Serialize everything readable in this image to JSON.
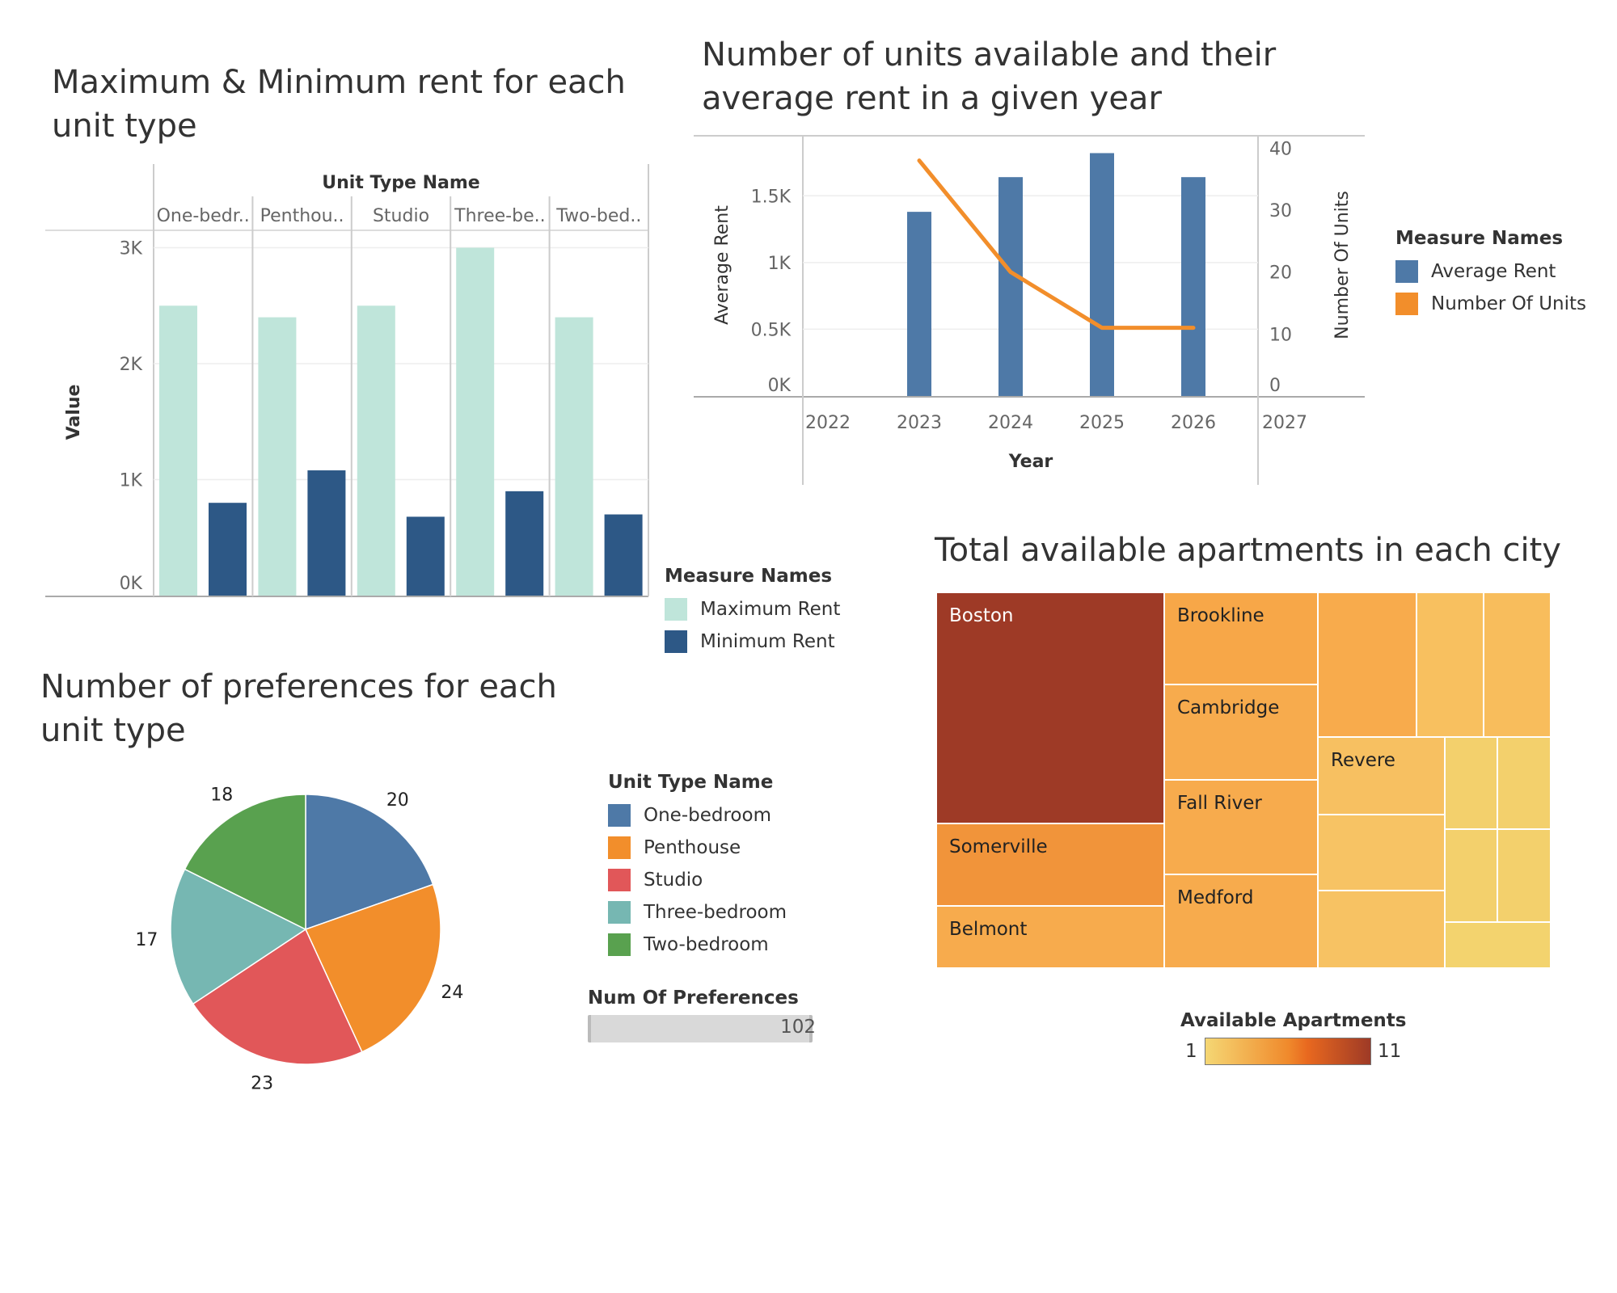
{
  "bar_chart": {
    "title_line1": "Maximum & Minimum rent for each",
    "title_line2": "unit type",
    "header": "Unit Type Name",
    "legend_title": "Measure Names",
    "colors": {
      "max": "#bfe5da",
      "min": "#2d5886"
    }
  },
  "combo_chart": {
    "title_line1": "Number of units available and their",
    "title_line2": "average rent in a given year",
    "legend_title": "Measure Names",
    "colors": {
      "bar": "#4e79a7",
      "line": "#f28e2b"
    }
  },
  "pie_chart": {
    "title_line1": "Number of preferences for each",
    "title_line2": "unit type",
    "legend_title": "Unit Type Name",
    "size_legend_title": "Num Of Preferences",
    "size_legend_value": "102"
  },
  "treemap": {
    "title": "Total available apartments in each city",
    "legend_title": "Available Apartments",
    "legend_min": "1",
    "legend_max": "11"
  },
  "chart_data": [
    {
      "type": "bar",
      "categories": [
        "One-bedr..",
        "Penthou..",
        "Studio",
        "Three-be..",
        "Two-bed.."
      ],
      "series": [
        {
          "name": "Maximum Rent",
          "values": [
            2500,
            2400,
            2500,
            3000,
            2400
          ]
        },
        {
          "name": "Minimum Rent",
          "values": [
            800,
            1080,
            680,
            900,
            700
          ]
        }
      ],
      "xlabel": "Unit Type Name",
      "ylabel": "Value",
      "ylim": [
        0,
        3150
      ],
      "yticks": [
        0,
        1000,
        2000,
        3000
      ],
      "ytick_labels": [
        "0K",
        "1K",
        "2K",
        "3K"
      ],
      "legend_placement": "bottom-right"
    },
    {
      "type": "bar",
      "x": [
        2023,
        2024,
        2025,
        2026
      ],
      "xticks": [
        "2022",
        "2023",
        "2024",
        "2025",
        "2026",
        "2027"
      ],
      "series": [
        {
          "name": "Average Rent",
          "type": "bar",
          "axis": "left",
          "values": [
            1380,
            1640,
            1820,
            1640
          ]
        },
        {
          "name": "Number Of Units",
          "type": "line",
          "axis": "right",
          "values": [
            38,
            20,
            11,
            11
          ]
        }
      ],
      "xlabel": "Year",
      "ylabel": "Average Rent",
      "y2label": "Number Of Units",
      "ylim": [
        0,
        1950
      ],
      "y2lim": [
        0,
        42
      ],
      "yticks": [
        0,
        500,
        1000,
        1500
      ],
      "ytick_labels": [
        "0K",
        "0.5K",
        "1K",
        "1.5K"
      ],
      "y2ticks": [
        0,
        10,
        20,
        30,
        40
      ],
      "legend_placement": "right"
    },
    {
      "type": "pie",
      "labels": [
        "One-bedroom",
        "Penthouse",
        "Studio",
        "Three-bedroom",
        "Two-bedroom"
      ],
      "values": [
        20,
        24,
        23,
        17,
        18
      ],
      "colors": [
        "#4e79a7",
        "#f28e2b",
        "#e15759",
        "#76b7b2",
        "#59a14f"
      ],
      "legend_placement": "right"
    },
    {
      "type": "treemap",
      "cells": [
        {
          "label": "Boston",
          "value": 11,
          "color": "#9e3a26"
        },
        {
          "label": "Somerville",
          "value": 4,
          "color": "#f1943a"
        },
        {
          "label": "Belmont",
          "value": 3,
          "color": "#f7ab4d"
        },
        {
          "label": "Brookline",
          "value": 3,
          "color": "#f7a748"
        },
        {
          "label": "Cambridge",
          "value": 3,
          "color": "#f7ab4d"
        },
        {
          "label": "Fall River",
          "value": 3,
          "color": "#f7ab4d"
        },
        {
          "label": "Medford",
          "value": 3,
          "color": "#f7ab4d"
        },
        {
          "label": "Revere",
          "value": 2,
          "color": "#f7c061"
        },
        {
          "label": "",
          "value": 3,
          "color": "#f8ab4c"
        },
        {
          "label": "",
          "value": 2,
          "color": "#f8c05f"
        },
        {
          "label": "",
          "value": 2,
          "color": "#f8bd5c"
        },
        {
          "label": "",
          "value": 2,
          "color": "#f7c364"
        },
        {
          "label": "",
          "value": 2,
          "color": "#f7c263"
        },
        {
          "label": "",
          "value": 1,
          "color": "#f3d06c"
        },
        {
          "label": "",
          "value": 1,
          "color": "#f3d06c"
        },
        {
          "label": "",
          "value": 1,
          "color": "#f3d06c"
        },
        {
          "label": "",
          "value": 1,
          "color": "#f3d06c"
        },
        {
          "label": "",
          "value": 1,
          "color": "#f3d36e"
        }
      ],
      "colorscale": [
        "#f5d774",
        "#f08a2c",
        "#e8681f",
        "#9e3a26"
      ]
    }
  ]
}
